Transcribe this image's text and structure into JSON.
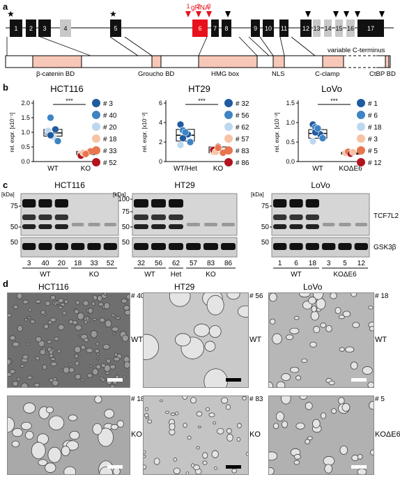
{
  "panel_labels": {
    "a": "a",
    "b": "b",
    "c": "c",
    "d": "d"
  },
  "panel_a": {
    "gRNA_title": "gRNA",
    "gRNA_numbers": [
      "1",
      "2",
      "3"
    ],
    "exons": [
      "1",
      "2",
      "3",
      "4",
      "5",
      "6",
      "7",
      "8",
      "9",
      "10",
      "11",
      "12",
      "13",
      "14",
      "15",
      "16",
      "17"
    ],
    "domains": [
      "β-catenin BD",
      "Groucho BD",
      "HMG box",
      "NLS",
      "C-clamp",
      "CtBP BD"
    ],
    "variable_label": "variable C-terminus",
    "colors": {
      "exon_black": "#111111",
      "exon_gray": "#c8c8c8",
      "gRNA_red": "#e8101a",
      "domain_pink": "#f7c7b8"
    }
  },
  "panel_b": {
    "plots": [
      {
        "title": "HCT116",
        "ylabel": "rel. expr. [x10⁻¹]",
        "yticks": [
          "0.0",
          "0.5",
          "1.0",
          "1.5",
          "2.0"
        ],
        "ylim": [
          0,
          2
        ],
        "groups": [
          "WT",
          "KO"
        ],
        "significance": "***",
        "points": {
          "WT": [
            1.0,
            1.5,
            0.85,
            1.1,
            0.7,
            1.05,
            0.9
          ],
          "KO": [
            0.28,
            0.3,
            0.25,
            0.32,
            0.35,
            0.2,
            0.3,
            0.26
          ]
        },
        "box": {
          "WT": [
            0.87,
            0.98,
            1.1
          ],
          "KO": [
            0.24,
            0.29,
            0.35
          ]
        },
        "legend": [
          {
            "id": "# 3",
            "color": "#1f5b9e"
          },
          {
            "id": "# 40",
            "color": "#3d84c4"
          },
          {
            "id": "# 20",
            "color": "#bcd8ef"
          },
          {
            "id": "# 18",
            "color": "#f7c3a6"
          },
          {
            "id": "# 33",
            "color": "#e7764f"
          },
          {
            "id": "# 52",
            "color": "#b3121e"
          }
        ]
      },
      {
        "title": "HT29",
        "ylabel": "rel. expr. [x10⁻²]",
        "yticks": [
          "0",
          "2",
          "4",
          "6"
        ],
        "ylim": [
          0,
          6
        ],
        "groups": [
          "WT/Het",
          "KO"
        ],
        "significance": "***",
        "points": {
          "WT/Het": [
            3.8,
            3.2,
            2.6,
            2.8,
            2.0,
            1.7,
            2.4,
            3.0
          ],
          "KO": [
            1.0,
            1.3,
            1.5,
            1.1,
            0.9,
            1.2,
            1.0,
            1.4
          ]
        },
        "box": {
          "WT/Het": [
            2.1,
            2.7,
            3.3
          ],
          "KO": [
            0.9,
            1.1,
            1.5
          ]
        },
        "legend": [
          {
            "id": "# 32",
            "color": "#1f5b9e"
          },
          {
            "id": "# 56",
            "color": "#3d84c4"
          },
          {
            "id": "# 62",
            "color": "#bcd8ef"
          },
          {
            "id": "# 57",
            "color": "#f7c3a6"
          },
          {
            "id": "# 83",
            "color": "#e7764f"
          },
          {
            "id": "# 86",
            "color": "#b3121e"
          }
        ]
      },
      {
        "title": "LoVo",
        "ylabel": "rel. expr. [x10⁻²]",
        "yticks": [
          "0.0",
          "0.5",
          "1.0",
          "1.5"
        ],
        "ylim": [
          0,
          1.5
        ],
        "groups": [
          "WT",
          "KOΔE6"
        ],
        "significance": "***",
        "points": {
          "WT": [
            0.95,
            0.88,
            0.8,
            0.7,
            0.6,
            0.52,
            0.75,
            0.85
          ],
          "KOΔE6": [
            0.22,
            0.25,
            0.2,
            0.24
          ]
        },
        "box": {
          "WT": [
            0.6,
            0.72,
            0.82
          ],
          "KOΔE6": [
            0.19,
            0.21,
            0.24
          ]
        },
        "legend": [
          {
            "id": "# 1",
            "color": "#1f5b9e"
          },
          {
            "id": "# 6",
            "color": "#3d84c4"
          },
          {
            "id": "# 18",
            "color": "#bcd8ef"
          },
          {
            "id": "# 3",
            "color": "#f7c3a6"
          },
          {
            "id": "# 5",
            "color": "#e7764f"
          },
          {
            "id": "# 12",
            "color": "#b3121e"
          }
        ]
      }
    ]
  },
  "panel_c": {
    "blots": [
      {
        "title": "HCT116",
        "kda": "[kDa]",
        "markers_top": [
          "75",
          "50"
        ],
        "markers_bot": [
          "50"
        ],
        "lanes": [
          "3",
          "40",
          "20",
          "18",
          "33",
          "52"
        ],
        "groups": [
          {
            "label": "WT",
            "span": 3
          },
          {
            "label": "KO",
            "span": 3
          }
        ]
      },
      {
        "title": "HT29",
        "kda": "[kDa]",
        "markers_top": [
          "100",
          "75",
          "50"
        ],
        "markers_bot": [
          "50"
        ],
        "lanes": [
          "32",
          "56",
          "62",
          "57",
          "83",
          "86"
        ],
        "groups": [
          {
            "label": "WT",
            "span": 2
          },
          {
            "label": "Het",
            "span": 1
          },
          {
            "label": "KO",
            "span": 3
          }
        ]
      },
      {
        "title": "LoVo",
        "kda": "[kDa]",
        "markers_top": [
          "75",
          "50"
        ],
        "markers_bot": [
          "50"
        ],
        "lanes": [
          "1",
          "6",
          "18",
          "3",
          "5",
          "12"
        ],
        "groups": [
          {
            "label": "WT",
            "span": 3
          },
          {
            "label": "KOΔE6",
            "span": 3
          }
        ],
        "protein_labels": [
          "TCF7L2",
          "GSK3β"
        ]
      }
    ]
  },
  "panel_d": {
    "titles": [
      "HCT116",
      "HT29",
      "LoVo"
    ],
    "images": [
      {
        "id": "# 40",
        "label": "WT"
      },
      {
        "id": "# 56",
        "label": "WT"
      },
      {
        "id": "# 18",
        "label": "WT"
      },
      {
        "id": "# 18",
        "label": "KO"
      },
      {
        "id": "# 83",
        "label": "KO"
      },
      {
        "id": "# 5",
        "label": "KOΔE6"
      }
    ]
  }
}
